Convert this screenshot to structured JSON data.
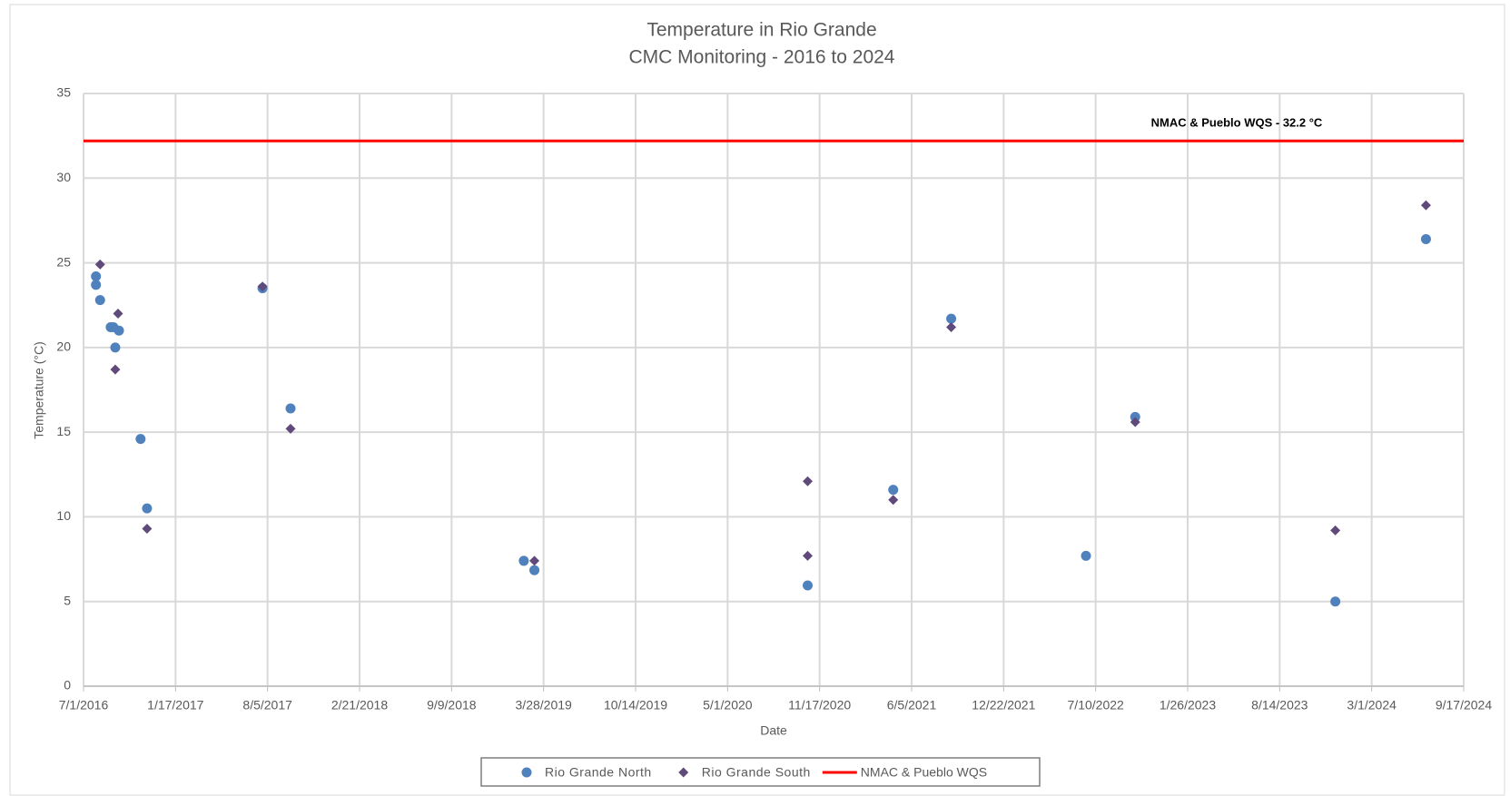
{
  "chart_data": {
    "type": "scatter",
    "title": "Temperature in Rio Grande",
    "subtitle": "CMC Monitoring - 2016 to 2024",
    "x_label": "Date",
    "y_label": "Temperature  (°C)",
    "xlim": [
      "7/1/2016",
      "9/17/2024"
    ],
    "xticks": [
      "7/1/2016",
      "1/17/2017",
      "8/5/2017",
      "2/21/2018",
      "9/9/2018",
      "3/28/2019",
      "10/14/2019",
      "5/1/2020",
      "11/17/2020",
      "6/5/2021",
      "12/22/2021",
      "7/10/2022",
      "1/26/2023",
      "8/14/2023",
      "3/1/2024",
      "9/17/2024"
    ],
    "ylim": [
      0,
      35
    ],
    "yticks": [
      0,
      5,
      10,
      15,
      20,
      25,
      30,
      35
    ],
    "grid": true,
    "legend": "bottom",
    "series": [
      {
        "name": "Rio Grande North",
        "color": "#4f81bd",
        "marker": "circle",
        "x": [
          "7/28/2016",
          "7/28/2016",
          "8/6/2016",
          "8/29/2016",
          "9/4/2016",
          "9/8/2016",
          "9/16/2016",
          "11/2/2016",
          "11/16/2016",
          "7/25/2017",
          "9/24/2017",
          "2/13/2019",
          "3/8/2019",
          "10/22/2020",
          "4/26/2021",
          "8/30/2021",
          "6/19/2022",
          "10/4/2022",
          "12/13/2023",
          "6/27/2024"
        ],
        "values": [
          24.2,
          23.7,
          22.8,
          21.2,
          21.2,
          20.0,
          21.0,
          14.6,
          10.5,
          23.5,
          16.4,
          7.4,
          6.85,
          5.95,
          11.6,
          21.7,
          7.7,
          15.9,
          5.0,
          26.4
        ]
      },
      {
        "name": "Rio Grande South",
        "color": "#604a7b",
        "marker": "diamond",
        "x": [
          "8/6/2016",
          "9/14/2016",
          "9/8/2016",
          "11/16/2016",
          "7/25/2017",
          "9/24/2017",
          "3/8/2019",
          "10/22/2020",
          "10/22/2020",
          "4/26/2021",
          "8/30/2021",
          "10/4/2022",
          "12/13/2023",
          "6/27/2024"
        ],
        "values": [
          24.9,
          22.0,
          18.7,
          9.3,
          23.6,
          15.2,
          7.4,
          12.1,
          7.7,
          11.0,
          21.2,
          15.6,
          9.2,
          28.4
        ]
      }
    ],
    "reference_lines": [
      {
        "name": "NMAC & Pueblo WQS",
        "value": 32.2,
        "color": "#ff0000",
        "annotation": "NMAC &  Pueblo WQS - 32.2 °C"
      }
    ]
  }
}
